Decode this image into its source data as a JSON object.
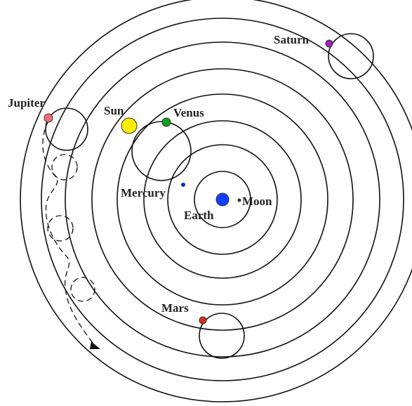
{
  "nodes": [
    {
      "label": "Saturn"
    },
    {
      "label": "Jupiter"
    },
    {
      "label": "Sun"
    },
    {
      "label": "Venus"
    },
    {
      "label": "Mercury"
    },
    {
      "label": "Earth"
    },
    {
      "label": "Moon"
    },
    {
      "label": "Mars"
    }
  ]
}
